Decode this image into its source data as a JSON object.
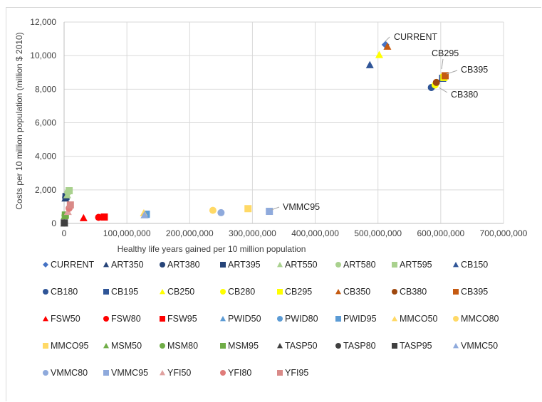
{
  "chart_data": {
    "type": "scatter",
    "title": "",
    "xlabel": "Healthy life years gained per 10 million population",
    "ylabel": "Costs per 10 million population (million $ 2010)",
    "xlim": [
      0,
      700000000
    ],
    "ylim": [
      0,
      12000
    ],
    "x_ticks": [
      "0",
      "100,000,000",
      "200,000,000",
      "300,000,000",
      "400,000,000",
      "500,000,000",
      "600,000,000",
      "700,000,000"
    ],
    "y_ticks": [
      "0",
      "2,000",
      "4,000",
      "6,000",
      "8,000",
      "10,000",
      "12,000"
    ],
    "grid": "vertical and horizontal gridlines",
    "legend_position": "bottom",
    "series": [
      {
        "name": "CURRENT",
        "marker": "diamond",
        "color": "#4472c4",
        "x": 512000000,
        "y": 10650
      },
      {
        "name": "ART350",
        "marker": "triangle",
        "color": "#264478",
        "x": 2000000,
        "y": 1500
      },
      {
        "name": "ART380",
        "marker": "circle",
        "color": "#264478",
        "x": 2500000,
        "y": 1550
      },
      {
        "name": "ART395",
        "marker": "square",
        "color": "#264478",
        "x": 3000000,
        "y": 1600
      },
      {
        "name": "ART550",
        "marker": "triangle",
        "color": "#a9d18e",
        "x": 5000000,
        "y": 1700
      },
      {
        "name": "ART580",
        "marker": "circle",
        "color": "#a9d18e",
        "x": 6000000,
        "y": 1850
      },
      {
        "name": "ART595",
        "marker": "square",
        "color": "#a9d18e",
        "x": 8000000,
        "y": 1950
      },
      {
        "name": "CB150",
        "marker": "triangle",
        "color": "#2f5597",
        "x": 487000000,
        "y": 9450
      },
      {
        "name": "CB180",
        "marker": "circle",
        "color": "#2f5597",
        "x": 585000000,
        "y": 8100
      },
      {
        "name": "CB195",
        "marker": "square",
        "color": "#2f5597",
        "x": 603000000,
        "y": 8650
      },
      {
        "name": "CB250",
        "marker": "triangle",
        "color": "#ffff00",
        "x": 502000000,
        "y": 10050
      },
      {
        "name": "CB280",
        "marker": "circle",
        "color": "#ffff00",
        "x": 591000000,
        "y": 8250
      },
      {
        "name": "CB295",
        "marker": "square",
        "color": "#ffff00",
        "x": 605000000,
        "y": 8700
      },
      {
        "name": "CB350",
        "marker": "triangle",
        "color": "#c55a11",
        "x": 515000000,
        "y": 10550
      },
      {
        "name": "CB380",
        "marker": "circle",
        "color": "#9e480e",
        "x": 593000000,
        "y": 8400
      },
      {
        "name": "CB395",
        "marker": "square",
        "color": "#c55a11",
        "x": 607000000,
        "y": 8800
      },
      {
        "name": "FSW50",
        "marker": "triangle",
        "color": "#ff0000",
        "x": 31000000,
        "y": 330
      },
      {
        "name": "FSW80",
        "marker": "circle",
        "color": "#ff0000",
        "x": 55000000,
        "y": 360
      },
      {
        "name": "FSW95",
        "marker": "square",
        "color": "#ff0000",
        "x": 64000000,
        "y": 380
      },
      {
        "name": "PWID50",
        "marker": "triangle",
        "color": "#5b9bd5",
        "x": 130000000,
        "y": 520
      },
      {
        "name": "PWID80",
        "marker": "circle",
        "color": "#5b9bd5",
        "x": 130500000,
        "y": 540
      },
      {
        "name": "PWID95",
        "marker": "square",
        "color": "#5b9bd5",
        "x": 131000000,
        "y": 550
      },
      {
        "name": "MMCO50",
        "marker": "triangle",
        "color": "#ffd966",
        "x": 127000000,
        "y": 620
      },
      {
        "name": "MMCO80",
        "marker": "circle",
        "color": "#ffd966",
        "x": 237000000,
        "y": 780
      },
      {
        "name": "MMCO95",
        "marker": "square",
        "color": "#ffd966",
        "x": 293000000,
        "y": 880
      },
      {
        "name": "MSM50",
        "marker": "triangle",
        "color": "#70ad47",
        "x": 1000000,
        "y": 450
      },
      {
        "name": "MSM80",
        "marker": "circle",
        "color": "#70ad47",
        "x": 1500000,
        "y": 480
      },
      {
        "name": "MSM95",
        "marker": "square",
        "color": "#70ad47",
        "x": 2000000,
        "y": 500
      },
      {
        "name": "TASP50",
        "marker": "triangle",
        "color": "#404040",
        "x": 300000,
        "y": 20
      },
      {
        "name": "TASP80",
        "marker": "circle",
        "color": "#404040",
        "x": 350000,
        "y": 25
      },
      {
        "name": "TASP95",
        "marker": "square",
        "color": "#404040",
        "x": 400000,
        "y": 30
      },
      {
        "name": "VMMC50",
        "marker": "triangle",
        "color": "#8faadc",
        "x": 128000000,
        "y": 500
      },
      {
        "name": "VMMC80",
        "marker": "circle",
        "color": "#8faadc",
        "x": 250000000,
        "y": 640
      },
      {
        "name": "VMMC95",
        "marker": "square",
        "color": "#8faadc",
        "x": 327000000,
        "y": 720
      },
      {
        "name": "YFI50",
        "marker": "triangle",
        "color": "#e0a2a0",
        "x": 6000000,
        "y": 700
      },
      {
        "name": "YFI80",
        "marker": "circle",
        "color": "#e07c7a",
        "x": 8000000,
        "y": 900
      },
      {
        "name": "YFI95",
        "marker": "square",
        "color": "#d98a88",
        "x": 10000000,
        "y": 1100
      }
    ],
    "annotations": [
      {
        "text": "CURRENT",
        "target": "CURRENT"
      },
      {
        "text": "CB295",
        "target": "CB295"
      },
      {
        "text": "CB395",
        "target": "CB395"
      },
      {
        "text": "CB380",
        "target": "CB380"
      },
      {
        "text": "VMMC95",
        "target": "VMMC95"
      }
    ]
  }
}
